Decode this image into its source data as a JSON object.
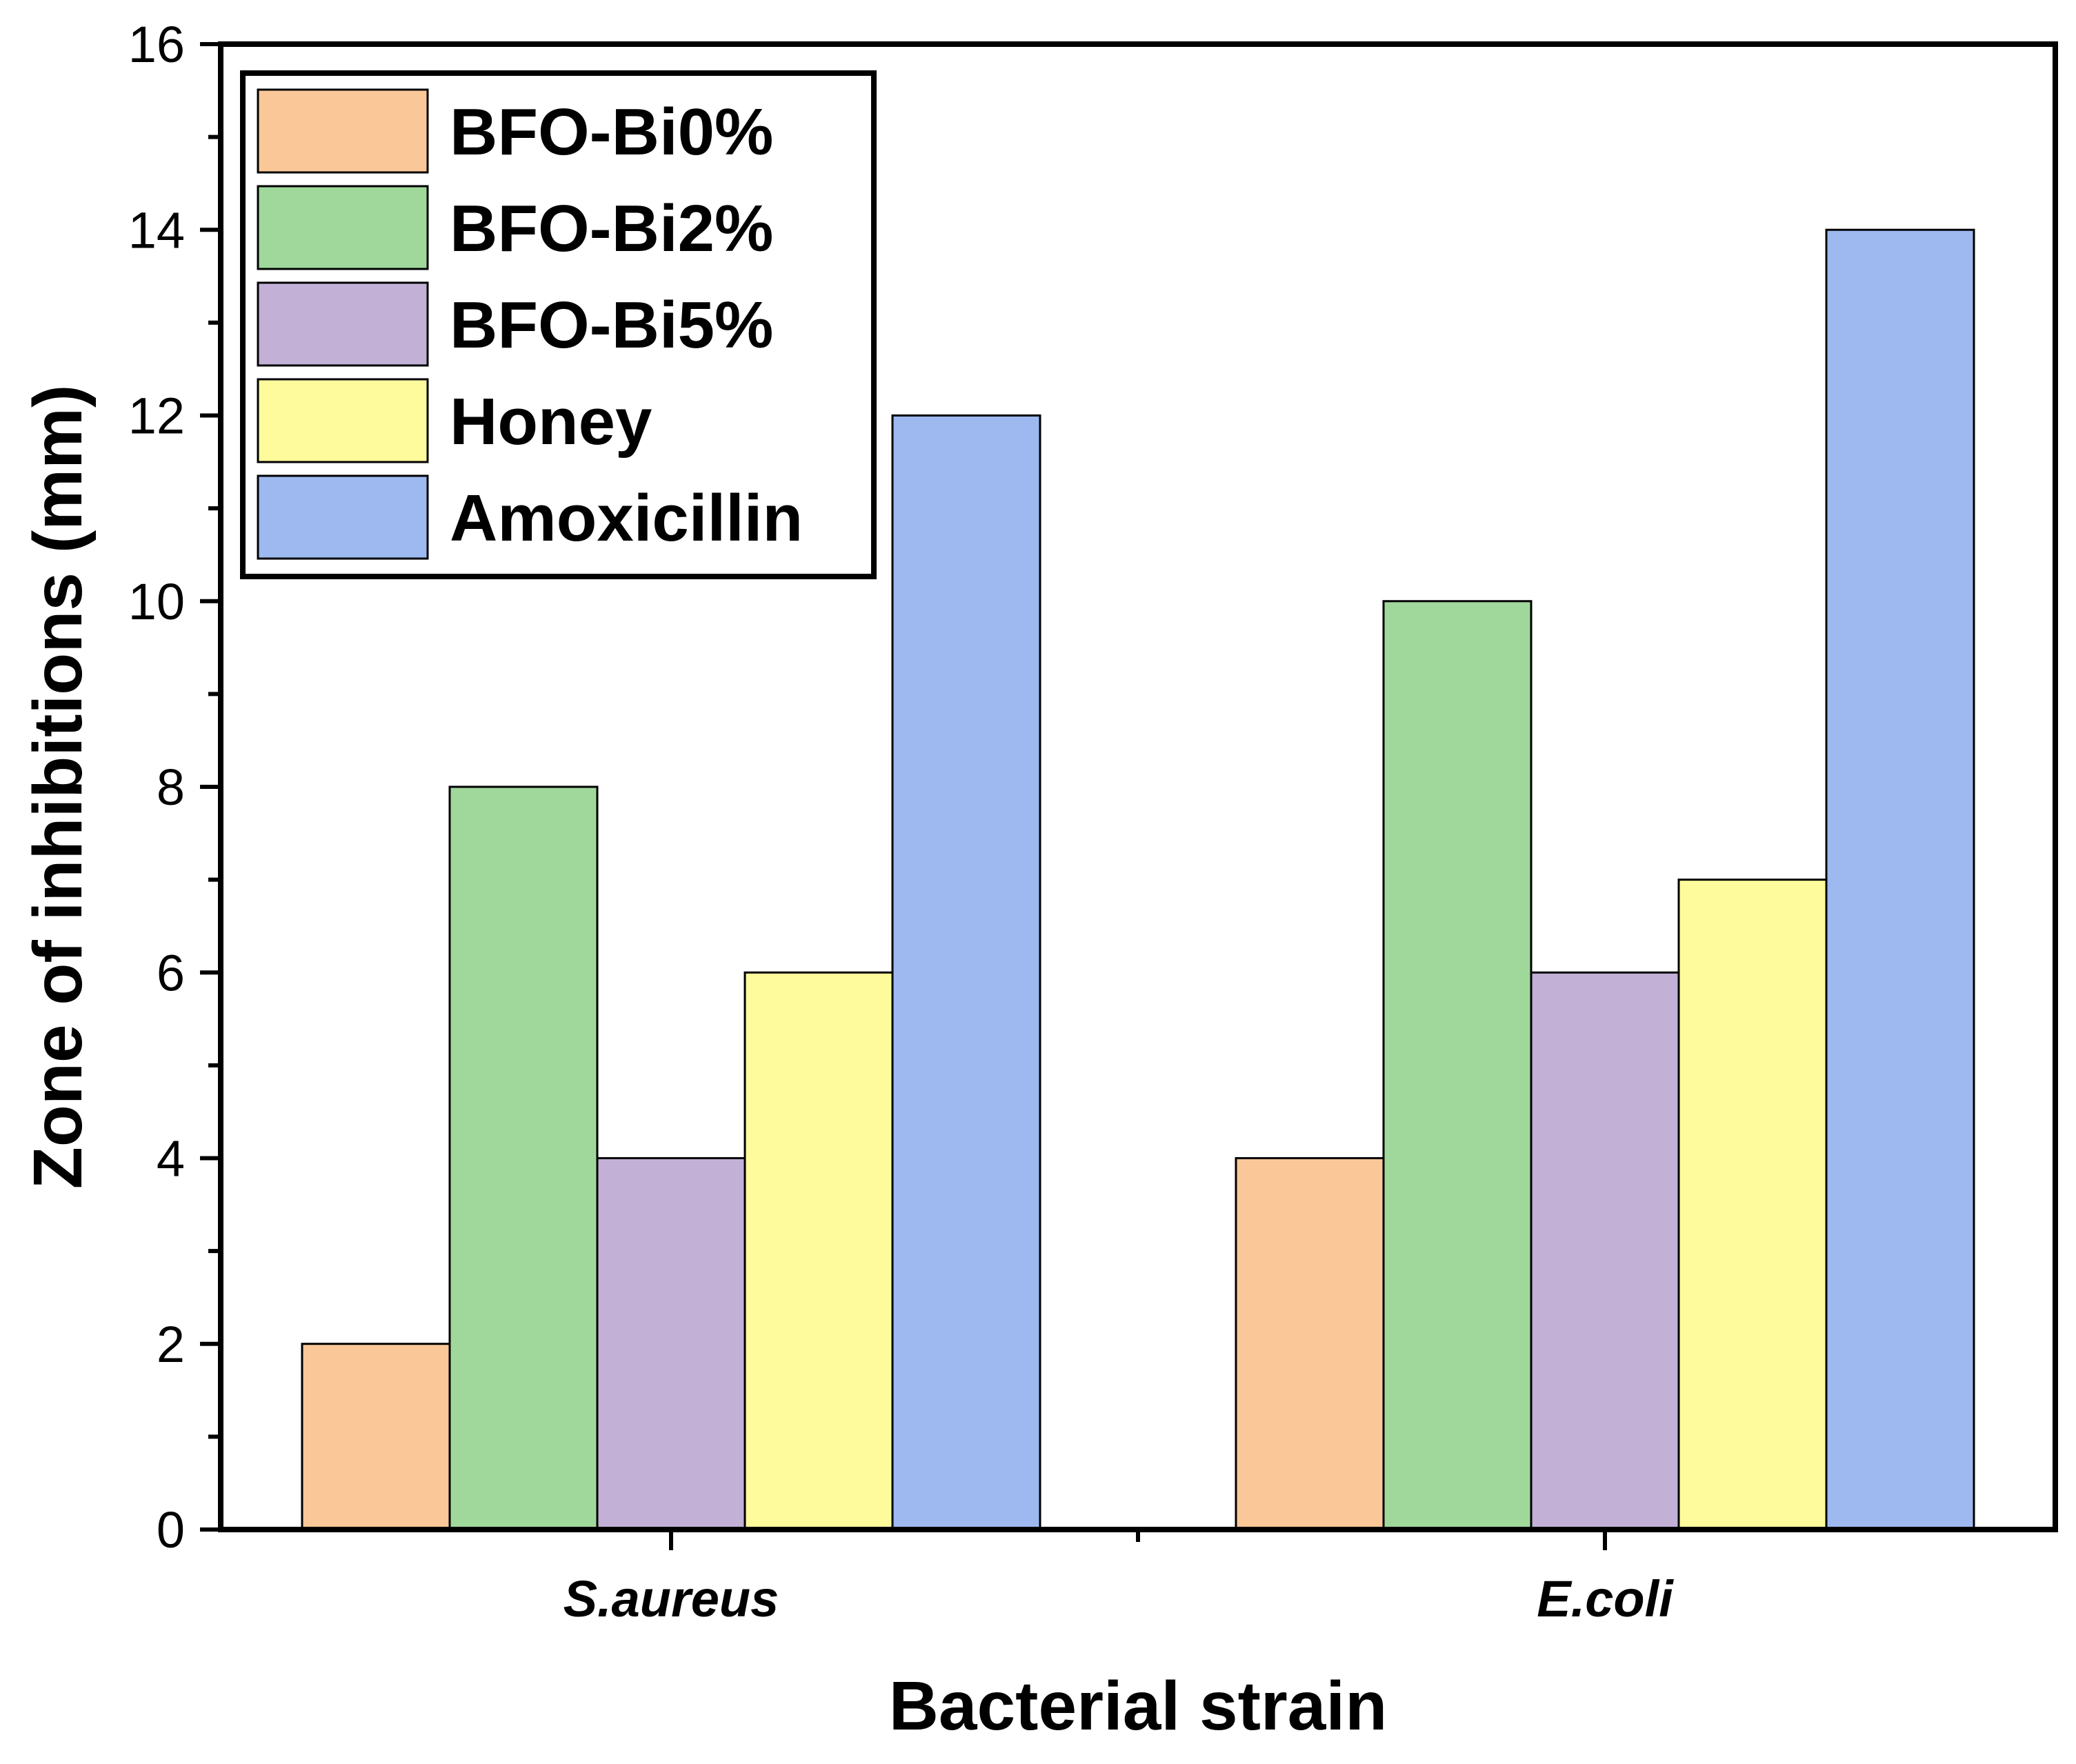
{
  "chart_data": {
    "type": "bar",
    "title": "",
    "xlabel": "Bacterial strain",
    "ylabel": "Zone of inhibitions (mm)",
    "categories": [
      "S.aureus",
      "E.coli"
    ],
    "ylim": [
      0,
      16
    ],
    "yticks": [
      "0",
      "2",
      "4",
      "6",
      "8",
      "10",
      "12",
      "14",
      "16"
    ],
    "grid": false,
    "legend_position": "top-left",
    "series": [
      {
        "name": "BFO-Bi0%",
        "color": "#FAC898",
        "values": [
          2,
          4
        ]
      },
      {
        "name": "BFO-Bi2%",
        "color": "#A0D89C",
        "values": [
          8,
          10
        ]
      },
      {
        "name": "BFO-Bi5%",
        "color": "#C2B0D6",
        "values": [
          4,
          6
        ]
      },
      {
        "name": "Honey",
        "color": "#FEFB9C",
        "values": [
          6,
          7
        ]
      },
      {
        "name": "Amoxicillin",
        "color": "#9DB9F0",
        "values": [
          12,
          14
        ]
      }
    ]
  }
}
